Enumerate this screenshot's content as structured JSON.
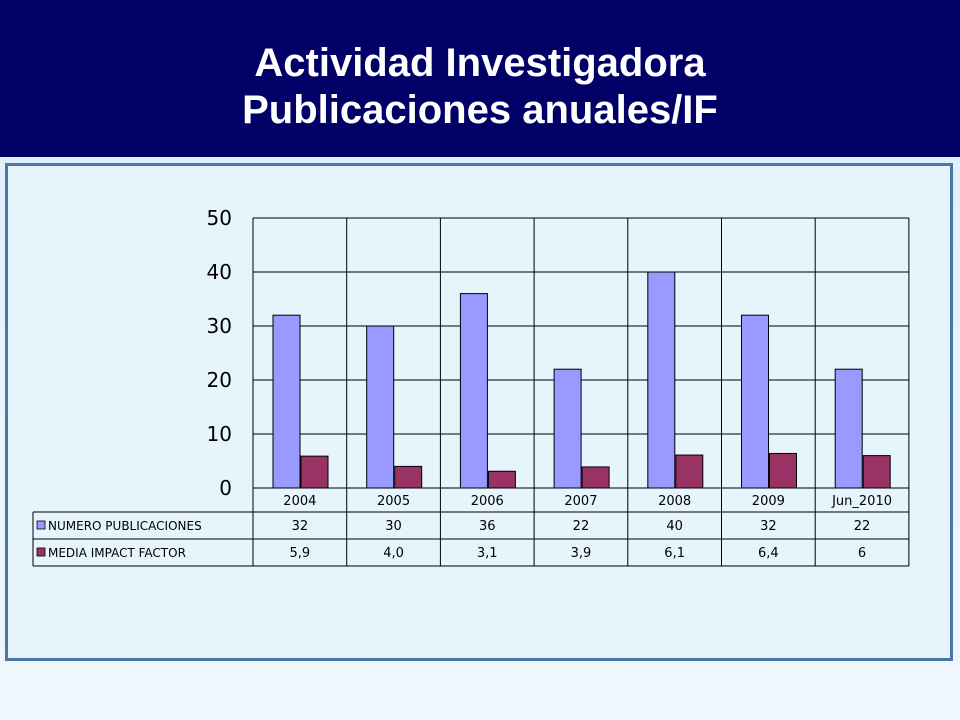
{
  "header": {
    "line1": "Actividad Investigadora",
    "line2": "Publicaciones anuales/IF"
  },
  "colors": {
    "header_bg": "#000066",
    "series1": "#9999FF",
    "series2": "#993366"
  },
  "chart_data": {
    "type": "bar",
    "categories": [
      "2004",
      "2005",
      "2006",
      "2007",
      "2008",
      "2009",
      "Jun_2010"
    ],
    "series": [
      {
        "name": "NUMERO PUBLICACIONES",
        "values": [
          32,
          30,
          36,
          22,
          40,
          32,
          22
        ],
        "labels": [
          "32",
          "30",
          "36",
          "22",
          "40",
          "32",
          "22"
        ],
        "color": "#9999FF"
      },
      {
        "name": "MEDIA IMPACT FACTOR",
        "values": [
          5.9,
          4.0,
          3.1,
          3.9,
          6.1,
          6.4,
          6
        ],
        "labels": [
          "5,9",
          "4,0",
          "3,1",
          "3,9",
          "6,1",
          "6,4",
          "6"
        ],
        "color": "#993366"
      }
    ],
    "yticks": [
      "0",
      "10",
      "20",
      "30",
      "40",
      "50"
    ],
    "ylim": [
      0,
      50
    ],
    "grid": true,
    "legend": "data-table"
  }
}
